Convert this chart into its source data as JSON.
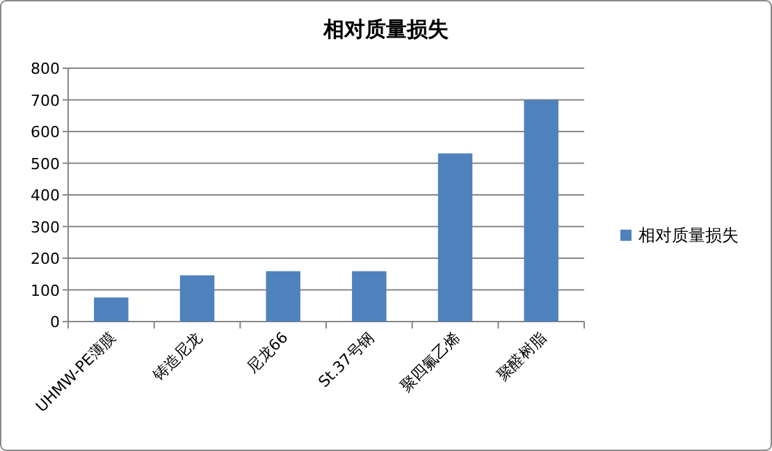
{
  "chart_data": {
    "type": "bar",
    "title": "相对质量损失",
    "categories": [
      "UHMW-PE薄膜",
      "铸造尼龙",
      "尼龙66",
      "St.37号钢",
      "聚四氟乙烯",
      "聚醛树脂"
    ],
    "series": [
      {
        "name": "相对质量损失",
        "color": "#4f81bd",
        "values": [
          76,
          146,
          159,
          159,
          531,
          700
        ]
      }
    ],
    "ylim": [
      0,
      800
    ],
    "yticks": [
      0,
      100,
      200,
      300,
      400,
      500,
      600,
      700,
      800
    ],
    "grid": "y",
    "legend": "right"
  }
}
